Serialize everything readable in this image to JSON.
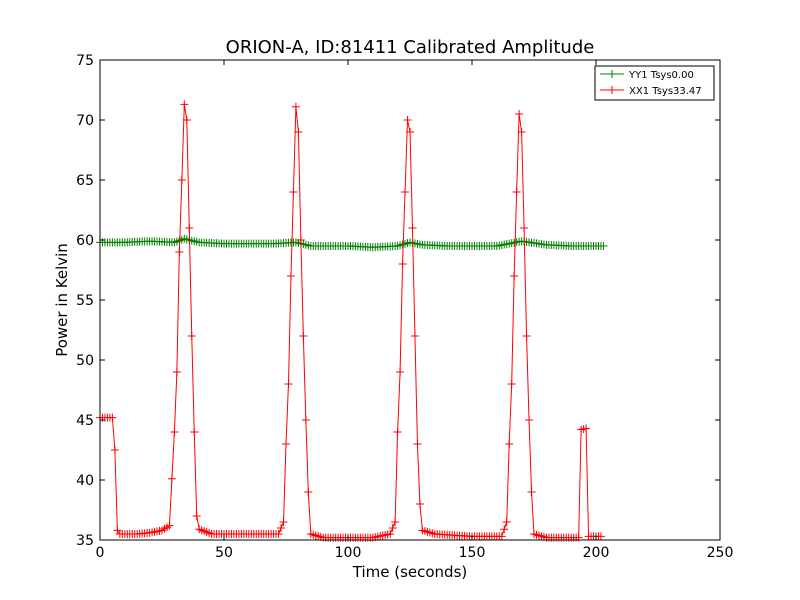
{
  "chart_data": {
    "type": "line",
    "title": "ORION-A, ID:81411 Calibrated Amplitude",
    "xlabel": "Time (seconds)",
    "ylabel": "Power in Kelvin",
    "xlim": [
      0,
      250
    ],
    "ylim": [
      35,
      75
    ],
    "xticks": [
      0,
      50,
      100,
      150,
      200,
      250
    ],
    "yticks": [
      35,
      40,
      45,
      50,
      55,
      60,
      65,
      70,
      75
    ],
    "grid": false,
    "legend_position": "top-right",
    "marker": "+",
    "series": [
      {
        "name": "YY1 Tsys0.00",
        "color": "#008000",
        "x_start": 0,
        "x_end": 203,
        "x_step": 1,
        "points": [
          [
            0,
            59.8
          ],
          [
            10,
            59.8
          ],
          [
            20,
            59.9
          ],
          [
            30,
            59.8
          ],
          [
            34,
            60.1
          ],
          [
            40,
            59.8
          ],
          [
            50,
            59.7
          ],
          [
            60,
            59.7
          ],
          [
            70,
            59.7
          ],
          [
            79,
            59.8
          ],
          [
            85,
            59.5
          ],
          [
            100,
            59.5
          ],
          [
            110,
            59.4
          ],
          [
            120,
            59.5
          ],
          [
            125,
            59.8
          ],
          [
            130,
            59.6
          ],
          [
            140,
            59.5
          ],
          [
            150,
            59.5
          ],
          [
            160,
            59.5
          ],
          [
            170,
            59.9
          ],
          [
            180,
            59.6
          ],
          [
            190,
            59.5
          ],
          [
            203,
            59.5
          ]
        ]
      },
      {
        "name": "XX1 Tsys33.47",
        "color": "#ff0000",
        "x_start": 0,
        "x_end": 202,
        "x_step": 1,
        "points": [
          [
            0,
            45.2
          ],
          [
            5,
            45.2
          ],
          [
            6,
            42.5
          ],
          [
            7,
            35.8
          ],
          [
            8,
            35.5
          ],
          [
            15,
            35.5
          ],
          [
            20,
            35.6
          ],
          [
            25,
            35.8
          ],
          [
            28,
            36.2
          ],
          [
            30,
            44.0
          ],
          [
            31,
            49.0
          ],
          [
            32,
            59.0
          ],
          [
            33,
            65.0
          ],
          [
            34,
            71.3
          ],
          [
            35,
            70.0
          ],
          [
            36,
            61.0
          ],
          [
            37,
            52.0
          ],
          [
            38,
            44.0
          ],
          [
            39,
            37.0
          ],
          [
            40,
            35.9
          ],
          [
            45,
            35.5
          ],
          [
            60,
            35.5
          ],
          [
            72,
            35.5
          ],
          [
            74,
            36.5
          ],
          [
            75,
            43.0
          ],
          [
            76,
            48.0
          ],
          [
            77,
            57.0
          ],
          [
            78,
            64.0
          ],
          [
            79,
            71.1
          ],
          [
            80,
            69.0
          ],
          [
            81,
            60.0
          ],
          [
            82,
            52.0
          ],
          [
            83,
            45.0
          ],
          [
            84,
            39.0
          ],
          [
            85,
            35.5
          ],
          [
            90,
            35.2
          ],
          [
            110,
            35.2
          ],
          [
            117,
            35.5
          ],
          [
            119,
            36.5
          ],
          [
            120,
            44.0
          ],
          [
            121,
            49.0
          ],
          [
            122,
            58.0
          ],
          [
            123,
            64.0
          ],
          [
            124,
            70.0
          ],
          [
            125,
            69.0
          ],
          [
            126,
            61.0
          ],
          [
            127,
            52.0
          ],
          [
            128,
            43.0
          ],
          [
            129,
            38.0
          ],
          [
            130,
            35.8
          ],
          [
            135,
            35.5
          ],
          [
            150,
            35.3
          ],
          [
            162,
            35.3
          ],
          [
            164,
            36.5
          ],
          [
            165,
            43.0
          ],
          [
            166,
            48.0
          ],
          [
            167,
            57.0
          ],
          [
            168,
            64.0
          ],
          [
            169,
            70.5
          ],
          [
            170,
            69.0
          ],
          [
            171,
            61.0
          ],
          [
            172,
            52.0
          ],
          [
            173,
            45.0
          ],
          [
            174,
            39.0
          ],
          [
            175,
            35.5
          ],
          [
            180,
            35.2
          ],
          [
            193,
            35.2
          ],
          [
            194,
            44.2
          ],
          [
            196,
            44.3
          ],
          [
            197,
            35.3
          ],
          [
            202,
            35.3
          ]
        ]
      }
    ]
  }
}
